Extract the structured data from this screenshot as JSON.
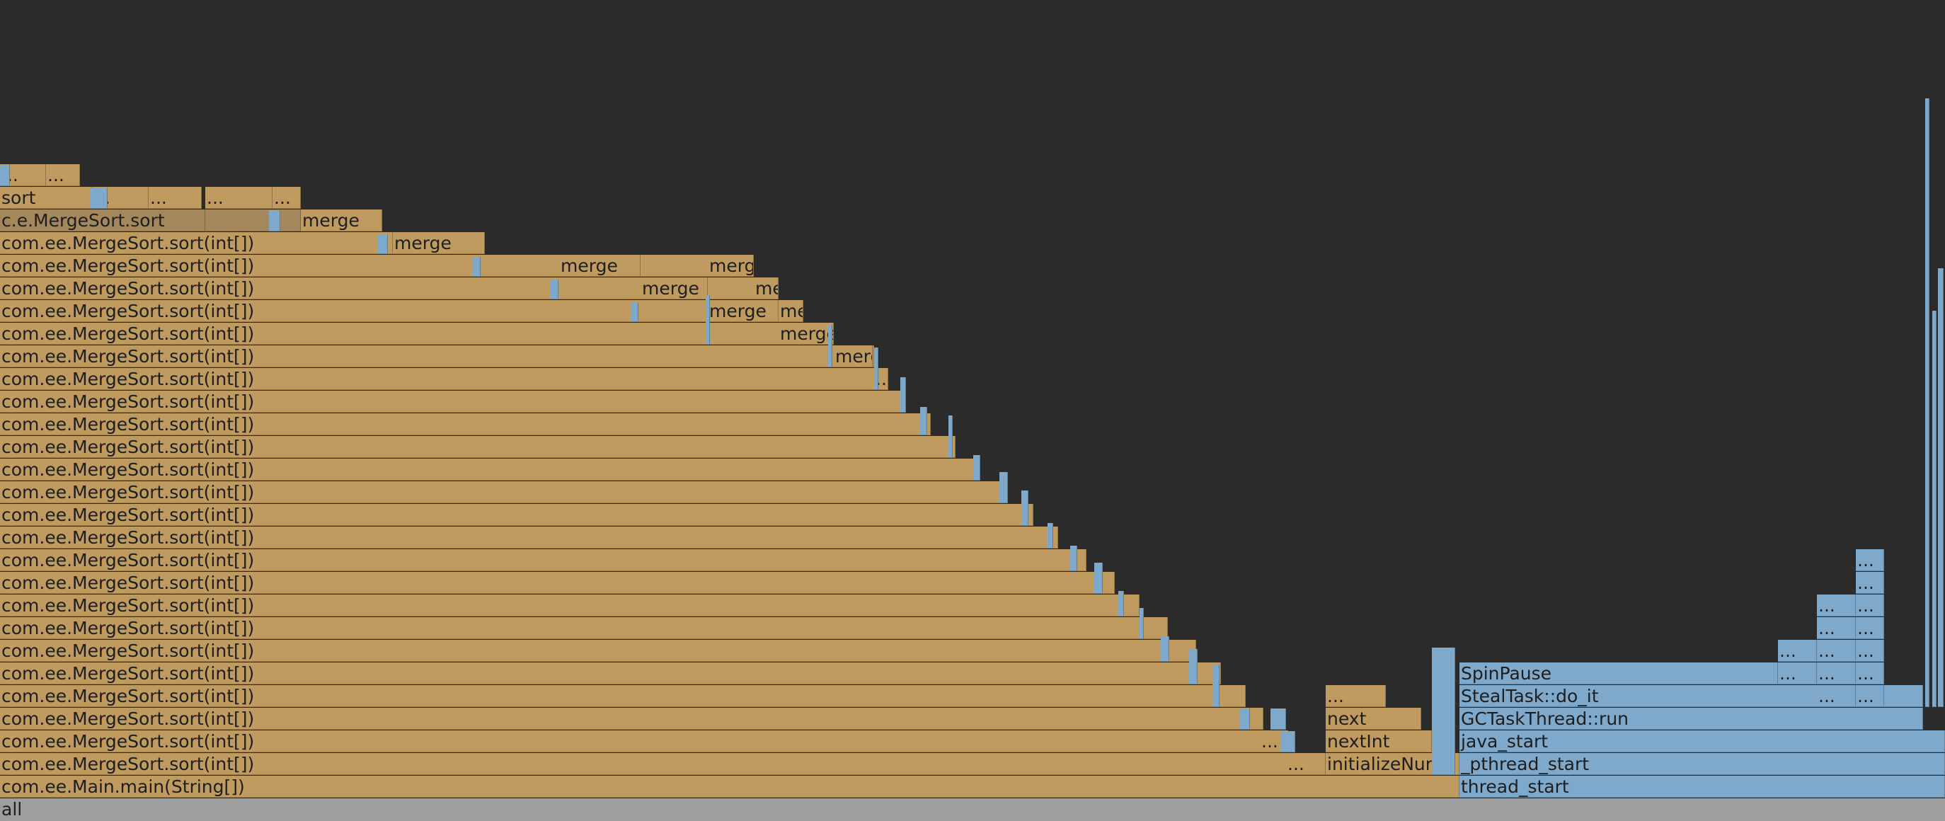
{
  "root_label": "all",
  "java_color": "#bf9b5f",
  "native_color": "#7fa9ca",
  "background": "#2b2b2b",
  "labels": {
    "main": "com.ee.Main.main(String[])",
    "sort_full": "com.ee.MergeSort.sort(int[])",
    "sort_short": "c.e.MergeSort.sort",
    "sort": "sort",
    "merge": "merge",
    "ellipsis": "...",
    "initializeNums": "initializeNums",
    "nextInt": "nextInt",
    "next": "next",
    "thread_start": "thread_start",
    "pthread_start": "_pthread_start",
    "java_start": "java_start",
    "gctask": "GCTaskThread::run",
    "stealtask": "StealTask::do_it",
    "spinpause": "SpinPause"
  }
}
